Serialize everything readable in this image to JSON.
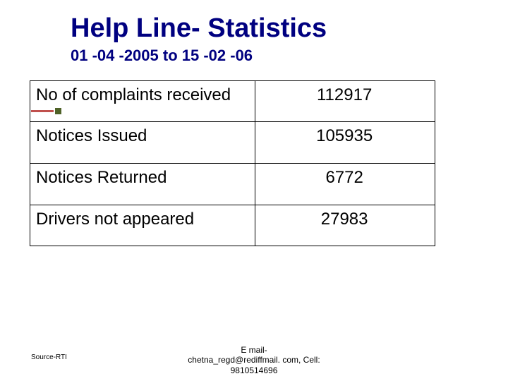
{
  "title": "Help Line- Statistics",
  "subtitle": "01 -04 -2005 to 15 -02 -06",
  "table": {
    "rows": [
      {
        "label": "No of complaints received",
        "value": "112917"
      },
      {
        "label": "Notices Issued",
        "value": "105935"
      },
      {
        "label": "Notices Returned",
        "value": "6772"
      },
      {
        "label": "Drivers not appeared",
        "value": "27983"
      }
    ]
  },
  "footer": {
    "source": "Source-RTI",
    "contact_line1": "E mail-",
    "contact_line2": "chetna_regd@rediffmail. com, Cell:",
    "contact_line3": "9810514696"
  },
  "colors": {
    "title_color": "#000080",
    "accent_red": "#c0504d",
    "accent_green": "#4f6228",
    "border": "#000000",
    "background": "#ffffff"
  }
}
